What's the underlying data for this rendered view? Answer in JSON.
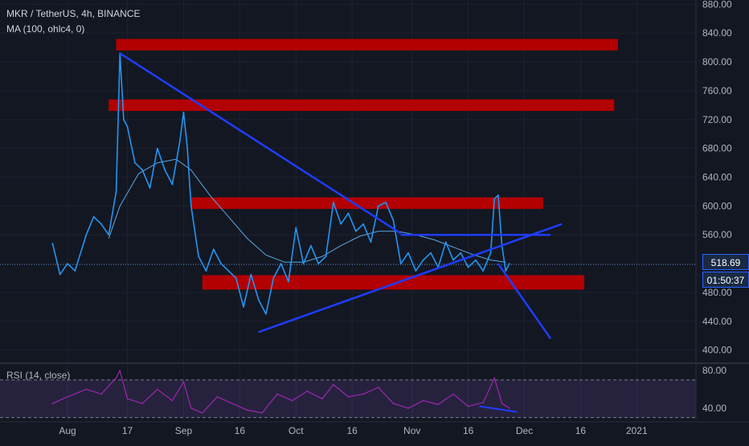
{
  "header": {
    "symbol_line": "MKR / TetherUS, 4h, BINANCE",
    "ma_line": "MA (100, ohlc4, 0)",
    "rsi_line": "RSI (14, close)"
  },
  "price_tag": "518.69",
  "countdown_tag": "01:50:37",
  "colors": {
    "background": "#131722",
    "price_line": "#2196f3",
    "ma_line": "#5aa9e6",
    "zone": "#b30000",
    "trendline": "#1f3cff",
    "rsi": "#9c27b0"
  },
  "chart_data": [
    {
      "type": "line",
      "series": [
        {
          "values": [
            [
              "Jul 28",
              548
            ],
            [
              "Jul 30",
              505
            ],
            [
              "Aug 1",
              520
            ],
            [
              "Aug 3",
              510
            ],
            [
              "Aug 6",
              560
            ],
            [
              "Aug 8",
              585
            ],
            [
              "Aug 10",
              575
            ],
            [
              "Aug 12",
              560
            ],
            [
              "Aug 14",
              620
            ],
            [
              "Aug 15",
              812
            ],
            [
              "Aug 16",
              720
            ],
            [
              "Aug 17",
              710
            ],
            [
              "Aug 19",
              660
            ],
            [
              "Aug 21",
              650
            ],
            [
              "Aug 23",
              625
            ],
            [
              "Aug 25",
              680
            ],
            [
              "Aug 27",
              650
            ],
            [
              "Aug 29",
              630
            ],
            [
              "Aug 31",
              690
            ],
            [
              "Sep 1",
              730
            ],
            [
              "Sep 2",
              680
            ],
            [
              "Sep 3",
              600
            ],
            [
              "Sep 5",
              530
            ],
            [
              "Sep 7",
              510
            ],
            [
              "Sep 9",
              540
            ],
            [
              "Sep 11",
              520
            ],
            [
              "Sep 13",
              510
            ],
            [
              "Sep 15",
              500
            ],
            [
              "Sep 17",
              460
            ],
            [
              "Sep 19",
              505
            ],
            [
              "Sep 21",
              470
            ],
            [
              "Sep 23",
              450
            ],
            [
              "Sep 25",
              500
            ],
            [
              "Sep 27",
              520
            ],
            [
              "Sep 29",
              495
            ],
            [
              "Oct 1",
              570
            ],
            [
              "Oct 3",
              520
            ],
            [
              "Oct 5",
              545
            ],
            [
              "Oct 7",
              520
            ],
            [
              "Oct 9",
              530
            ],
            [
              "Oct 11",
              605
            ],
            [
              "Oct 13",
              575
            ],
            [
              "Oct 15",
              590
            ],
            [
              "Oct 17",
              565
            ],
            [
              "Oct 19",
              575
            ],
            [
              "Oct 21",
              550
            ],
            [
              "Oct 23",
              600
            ],
            [
              "Oct 25",
              605
            ],
            [
              "Oct 27",
              580
            ],
            [
              "Oct 29",
              520
            ],
            [
              "Oct 31",
              535
            ],
            [
              "Nov 2",
              510
            ],
            [
              "Nov 4",
              525
            ],
            [
              "Nov 6",
              535
            ],
            [
              "Nov 8",
              515
            ],
            [
              "Nov 10",
              550
            ],
            [
              "Nov 12",
              525
            ],
            [
              "Nov 14",
              535
            ],
            [
              "Nov 16",
              515
            ],
            [
              "Nov 18",
              525
            ],
            [
              "Nov 20",
              510
            ],
            [
              "Nov 22",
              535
            ],
            [
              "Nov 23",
              610
            ],
            [
              "Nov 24",
              615
            ],
            [
              "Nov 25",
              545
            ],
            [
              "Nov 26",
              510
            ],
            [
              "Nov 27",
              520
            ]
          ]
        },
        {
          "values": [
            [
              "Aug 12",
              555
            ],
            [
              "Aug 15",
              600
            ],
            [
              "Aug 20",
              645
            ],
            [
              "Aug 25",
              660
            ],
            [
              "Aug 30",
              665
            ],
            [
              "Sep 3",
              650
            ],
            [
              "Sep 8",
              615
            ],
            [
              "Sep 13",
              585
            ],
            [
              "Sep 18",
              555
            ],
            [
              "Sep 23",
              532
            ],
            [
              "Sep 28",
              522
            ],
            [
              "Oct 3",
              522
            ],
            [
              "Oct 8",
              530
            ],
            [
              "Oct 13",
              545
            ],
            [
              "Oct 18",
              558
            ],
            [
              "Oct 23",
              565
            ],
            [
              "Oct 28",
              565
            ],
            [
              "Nov 2",
              560
            ],
            [
              "Nov 7",
              553
            ],
            [
              "Nov 12",
              543
            ],
            [
              "Nov 17",
              533
            ],
            [
              "Nov 22",
              525
            ],
            [
              "Nov 26",
              522
            ]
          ]
        }
      ],
      "zones": [
        {
          "from": "Aug 14",
          "to": "Dec 26",
          "low": 816,
          "high": 832
        },
        {
          "from": "Aug 12",
          "to": "Dec 25",
          "low": 732,
          "high": 748
        },
        {
          "from": "Sep 3",
          "to": "Dec 6",
          "low": 596,
          "high": 612
        },
        {
          "from": "Sep 6",
          "to": "Dec 17",
          "low": 484,
          "high": 504
        }
      ],
      "trendlines": [
        {
          "from": [
            "Aug 15",
            812
          ],
          "to": [
            "Oct 29",
            562
          ]
        },
        {
          "from": [
            "Nov 24",
            520
          ],
          "to": [
            "Dec 8",
            416
          ]
        },
        {
          "from": [
            "Sep 21",
            425
          ],
          "to": [
            "Dec 11",
            575
          ]
        },
        {
          "from": [
            "Oct 29",
            560
          ],
          "to": [
            "Dec 8",
            560
          ]
        }
      ],
      "current_price": 518.69,
      "x_tick_labels": [
        "Aug",
        "17",
        "Sep",
        "16",
        "Oct",
        "16",
        "Nov",
        "16",
        "Dec",
        "16",
        "2021"
      ],
      "y_tick_labels": [
        "880.00",
        "840.00",
        "800.00",
        "760.00",
        "720.00",
        "680.00",
        "640.00",
        "600.00",
        "560.00",
        "480.00",
        "440.00",
        "400.00"
      ],
      "ylim": [
        384,
        886
      ]
    },
    {
      "type": "line",
      "series": [
        {
          "values": [
            [
              "Jul 28",
              45
            ],
            [
              "Aug 1",
              52
            ],
            [
              "Aug 6",
              60
            ],
            [
              "Aug 10",
              55
            ],
            [
              "Aug 14",
              72
            ],
            [
              "Aug 15",
              80
            ],
            [
              "Aug 17",
              50
            ],
            [
              "Aug 21",
              45
            ],
            [
              "Aug 25",
              60
            ],
            [
              "Aug 29",
              48
            ],
            [
              "Sep 1",
              68
            ],
            [
              "Sep 3",
              40
            ],
            [
              "Sep 6",
              35
            ],
            [
              "Sep 10",
              52
            ],
            [
              "Sep 14",
              45
            ],
            [
              "Sep 18",
              38
            ],
            [
              "Sep 22",
              35
            ],
            [
              "Sep 26",
              55
            ],
            [
              "Sep 30",
              48
            ],
            [
              "Oct 4",
              58
            ],
            [
              "Oct 8",
              50
            ],
            [
              "Oct 11",
              65
            ],
            [
              "Oct 15",
              52
            ],
            [
              "Oct 19",
              55
            ],
            [
              "Oct 23",
              62
            ],
            [
              "Oct 27",
              45
            ],
            [
              "Oct 31",
              40
            ],
            [
              "Nov 4",
              48
            ],
            [
              "Nov 8",
              44
            ],
            [
              "Nov 12",
              55
            ],
            [
              "Nov 16",
              42
            ],
            [
              "Nov 20",
              46
            ],
            [
              "Nov 23",
              72
            ],
            [
              "Nov 25",
              45
            ],
            [
              "Nov 27",
              40
            ]
          ]
        }
      ],
      "trendlines": [
        {
          "from": [
            "Nov 19",
            42
          ],
          "to": [
            "Nov 29",
            36
          ]
        }
      ],
      "y_tick_labels": [
        "80.00",
        "40.00"
      ],
      "ylim": [
        28,
        86
      ]
    }
  ]
}
